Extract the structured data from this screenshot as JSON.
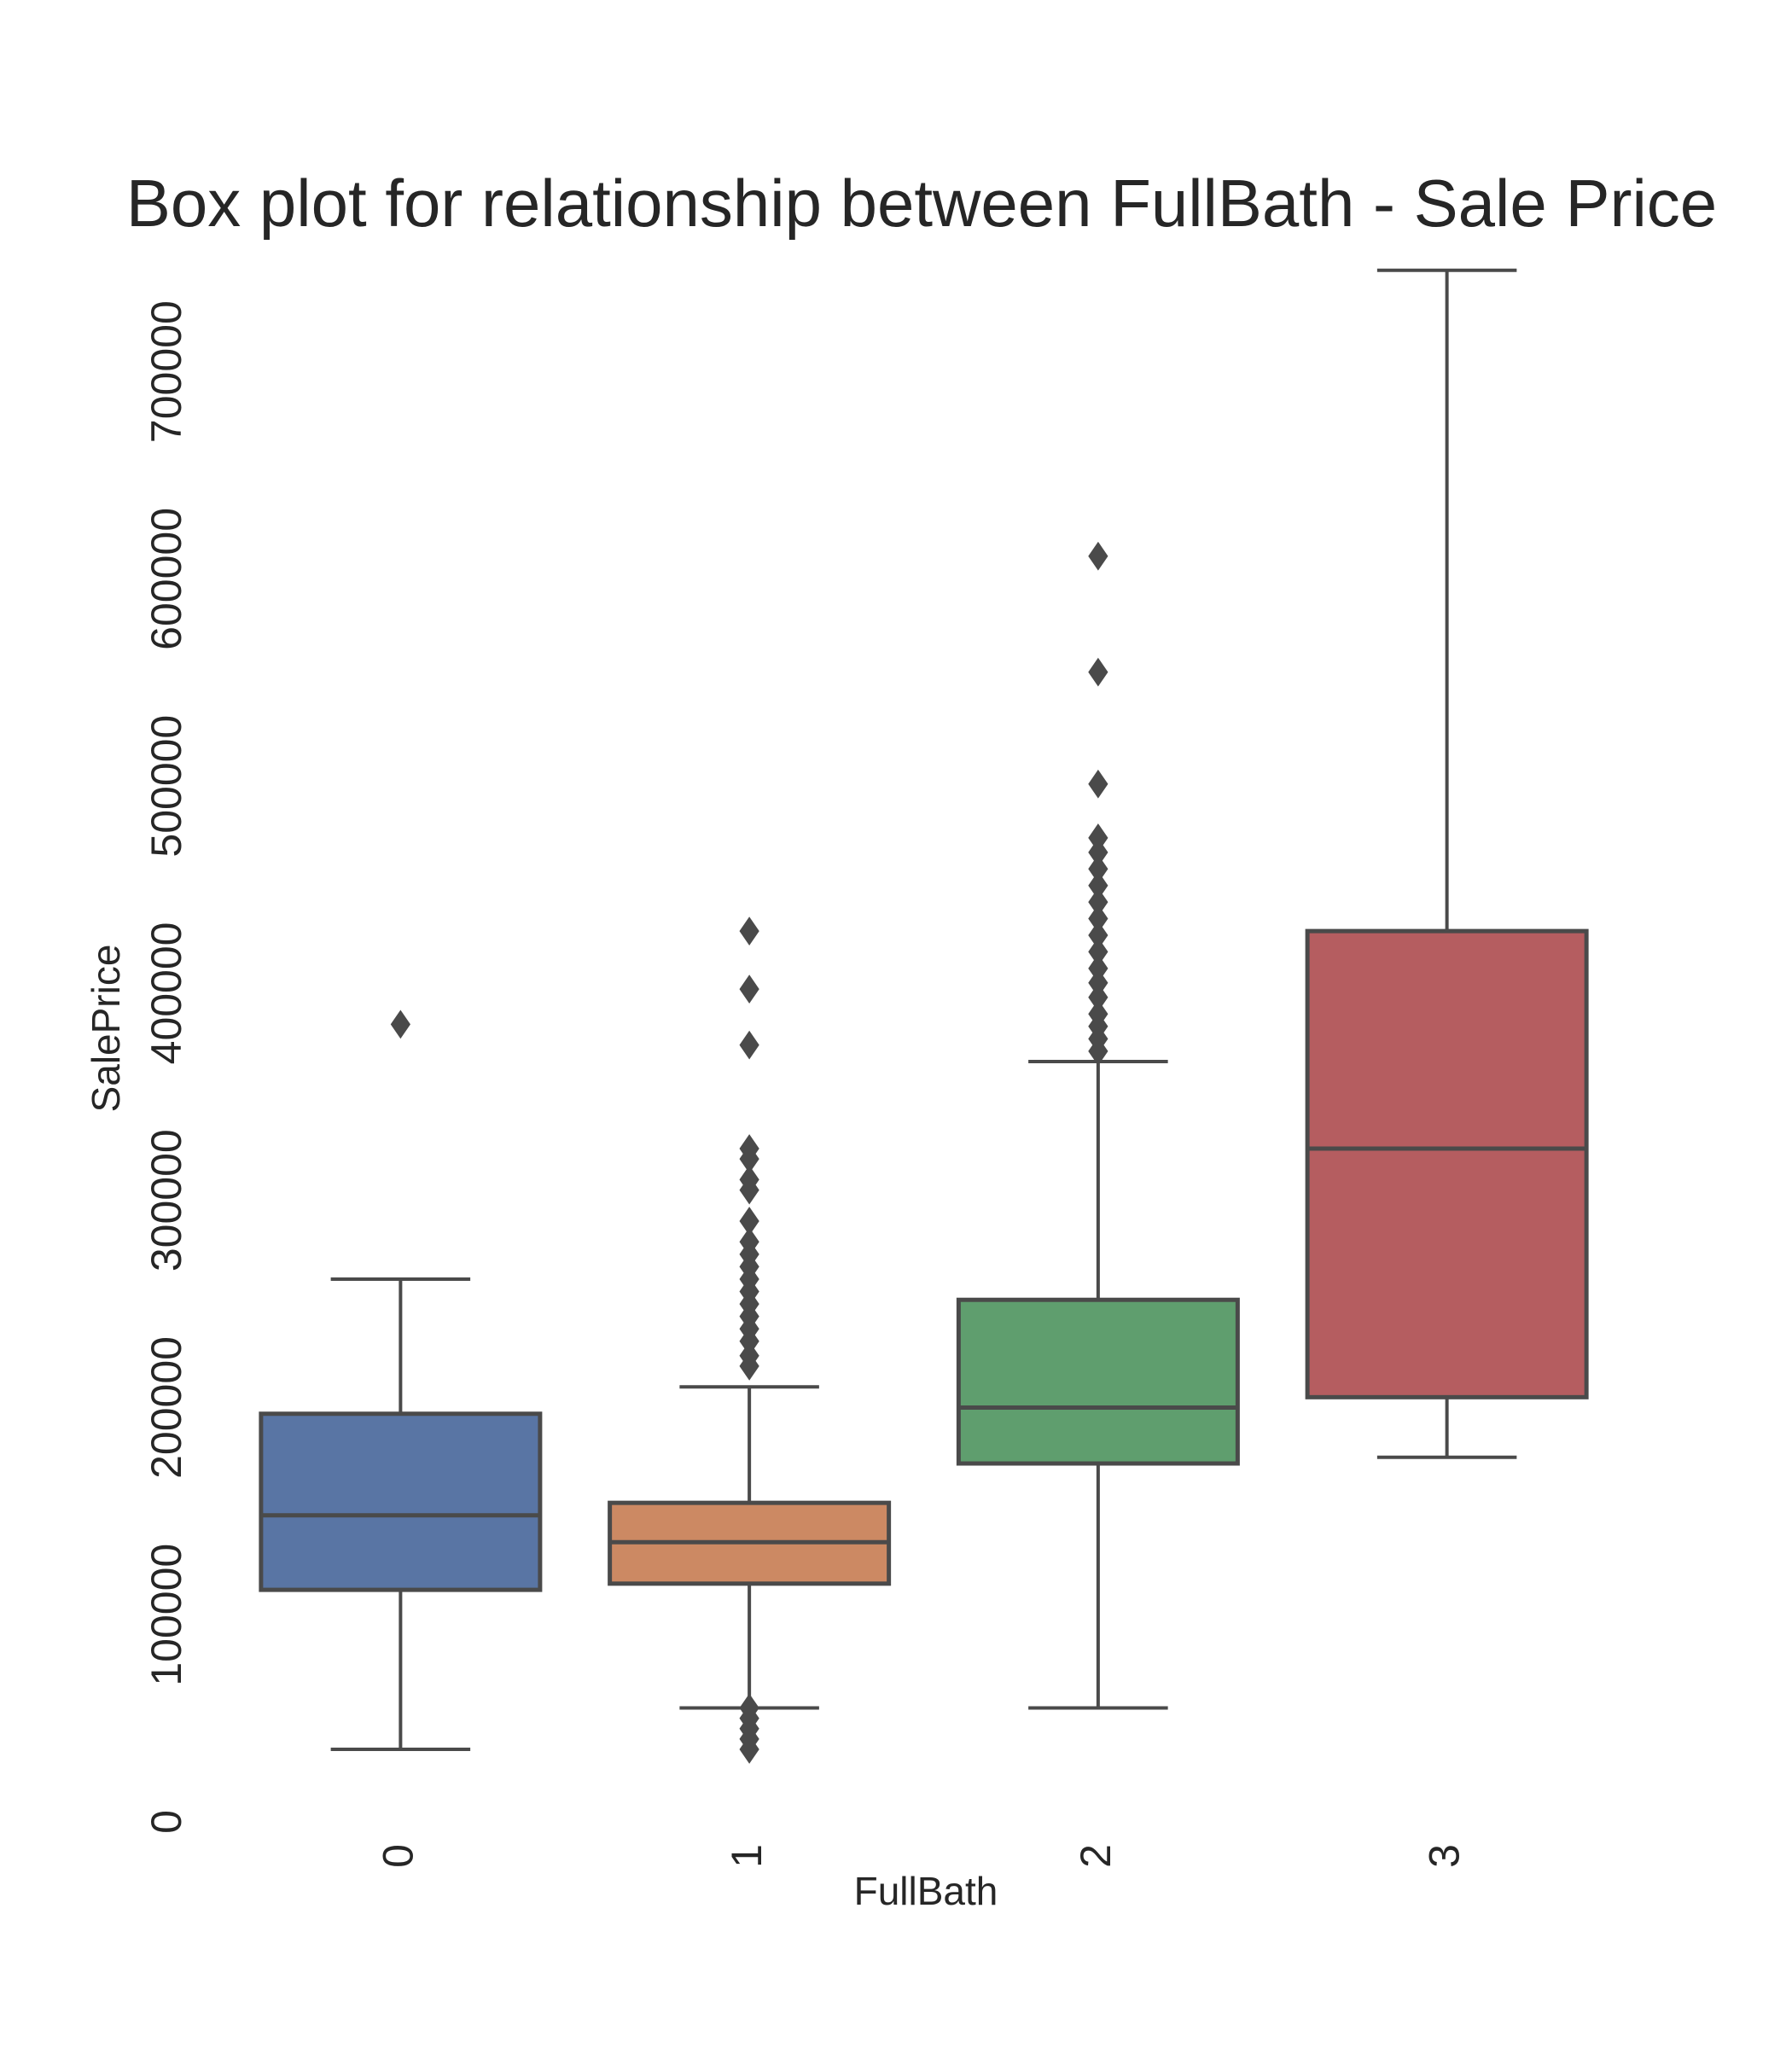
{
  "chart_data": {
    "type": "box",
    "title": "Box plot for relationship between FullBath - Sale Price",
    "xlabel": "FullBath",
    "ylabel": "SalePrice",
    "categories": [
      "0",
      "1",
      "2",
      "3"
    ],
    "ylim": [
      0,
      760000
    ],
    "y_ticks": [
      0,
      100000,
      200000,
      300000,
      400000,
      500000,
      600000,
      700000
    ],
    "y_tick_labels": [
      "0",
      "100000",
      "200000",
      "300000",
      "400000",
      "500000",
      "600000",
      "700000"
    ],
    "grid": false,
    "colors": [
      "#5975a4",
      "#cc8963",
      "#5f9e6e",
      "#b55d60"
    ],
    "line_color": "#4a4a4a",
    "boxes": [
      {
        "category": "0",
        "whislo": 35000,
        "q1": 112000,
        "med": 148000,
        "q3": 197000,
        "whishi": 262000,
        "fliers": [
          385000
        ]
      },
      {
        "category": "1",
        "whislo": 55000,
        "q1": 115000,
        "med": 135000,
        "q3": 154000,
        "whishi": 210000,
        "fliers": [
          35000,
          40000,
          45000,
          50000,
          55000,
          220000,
          225000,
          232000,
          238000,
          244000,
          250000,
          256000,
          262000,
          268000,
          274000,
          280000,
          290000,
          305000,
          310000,
          320000,
          325000,
          375000,
          402000,
          430000
        ]
      },
      {
        "category": "2",
        "whislo": 55000,
        "q1": 173000,
        "med": 200000,
        "q3": 252000,
        "whishi": 367000,
        "fliers": [
          372000,
          378000,
          384000,
          390000,
          398000,
          405000,
          412000,
          420000,
          428000,
          436000,
          444000,
          452000,
          460000,
          468000,
          475000,
          501000,
          555000,
          611000
        ]
      },
      {
        "category": "3",
        "whislo": 176000,
        "q1": 205000,
        "med": 325000,
        "q3": 430000,
        "whishi": 749000,
        "fliers": []
      }
    ]
  }
}
